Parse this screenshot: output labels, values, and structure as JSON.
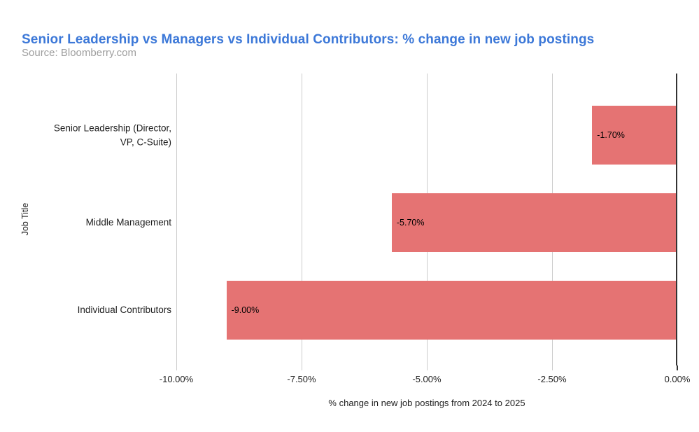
{
  "chart_data": {
    "type": "bar",
    "orientation": "horizontal",
    "title": "Senior Leadership vs Managers vs Individual Contributors: % change in new job postings",
    "subtitle": "Source: Bloomberry.com",
    "categories": [
      "Senior Leadership (Director, VP, C-Suite)",
      "Middle Management",
      "Individual Contributors"
    ],
    "values": [
      -1.7,
      -5.7,
      -9.0
    ],
    "data_labels": [
      "-1.70%",
      "-5.70%",
      "-9.00%"
    ],
    "xlabel": "% change in new job postings from 2024 to 2025",
    "ylabel": "Job Title",
    "xlim": [
      -10,
      0
    ],
    "x_ticks": [
      {
        "value": -10,
        "label": "-10.00%"
      },
      {
        "value": -7.5,
        "label": "-7.50%"
      },
      {
        "value": -5,
        "label": "-5.00%"
      },
      {
        "value": -2.5,
        "label": "-2.50%"
      },
      {
        "value": 0,
        "label": "0.00%"
      }
    ],
    "grid": "vertical",
    "legend": "none",
    "colors": {
      "bar": "#e57373",
      "title": "#3c78d8",
      "subtitle": "#9e9e9e",
      "grid": "#cccccc",
      "axis": "#333333",
      "text": "#1f1f1f",
      "data_label": "#000000",
      "background": "#ffffff"
    }
  }
}
